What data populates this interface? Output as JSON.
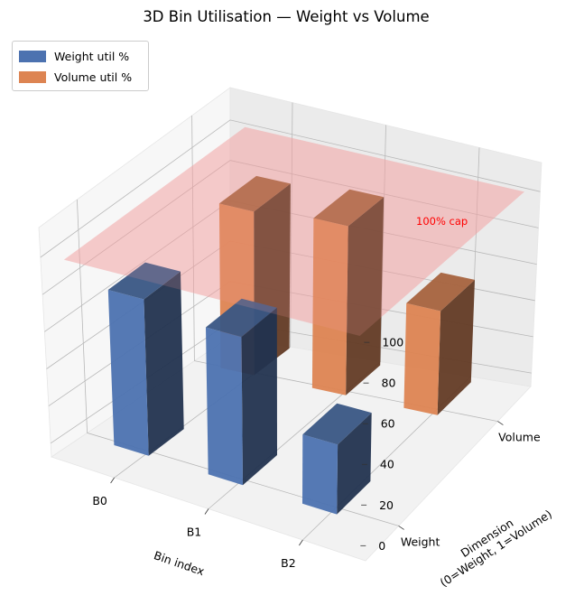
{
  "chart_data": {
    "type": "bar",
    "projection": "3d",
    "title": "3D Bin Utilisation — Weight vs Volume",
    "xlabel": "Bin index",
    "ylabel": "Dimension\n(0=Weight, 1=Volume)",
    "zlabel": "",
    "categories": [
      "B0",
      "B1",
      "B2"
    ],
    "dimension_ticks": [
      "Weight",
      "Volume"
    ],
    "zticks": [
      "0",
      "20",
      "40",
      "60",
      "80",
      "100"
    ],
    "zlim": [
      0,
      100
    ],
    "series": [
      {
        "name": "Weight util %",
        "color": "#4c72b0",
        "values": [
          82,
          76,
          35
        ]
      },
      {
        "name": "Volume util %",
        "color": "#dd8452",
        "values": [
          84,
          88,
          55
        ]
      }
    ],
    "reference_plane": {
      "value": 100,
      "label": "100% cap",
      "color": "#f4a0a0",
      "label_color": "#ff0000"
    },
    "grid": true,
    "legend": "top-left"
  }
}
